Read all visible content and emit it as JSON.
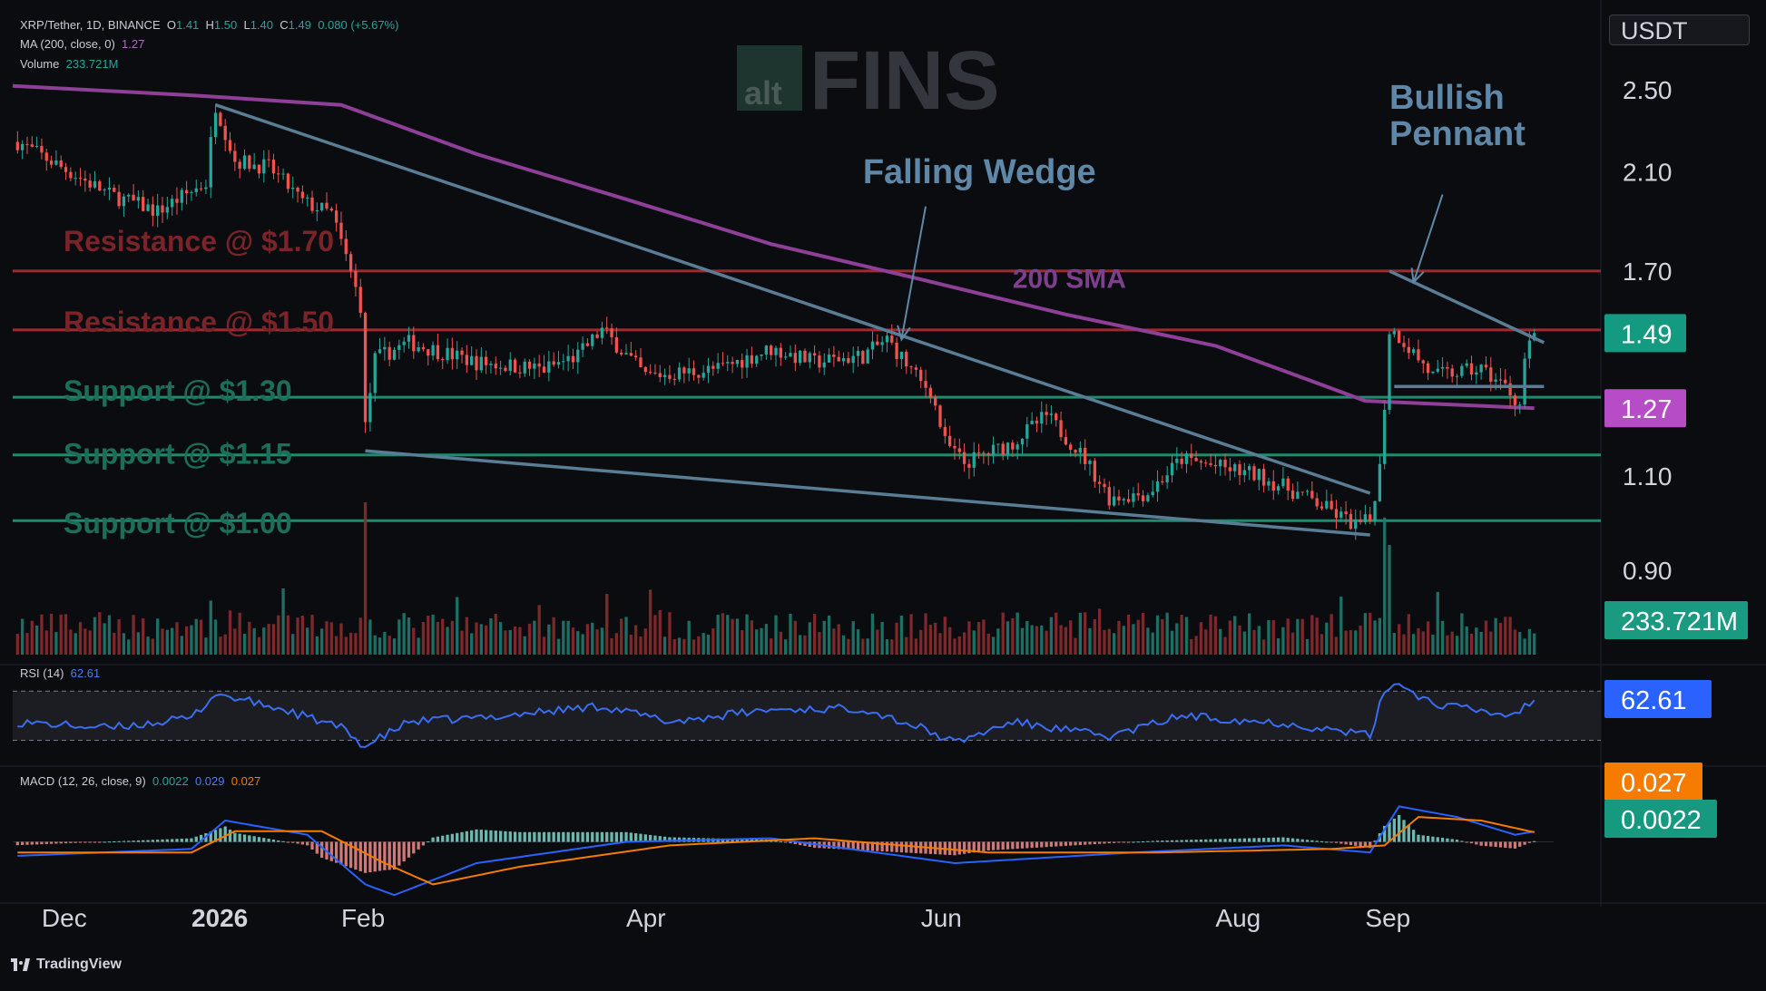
{
  "header": {
    "symbol": "XRP/Tether, 1D, BINANCE",
    "ohlc": [
      {
        "label": "O",
        "value": "1.41"
      },
      {
        "label": "H",
        "value": "1.50"
      },
      {
        "label": "L",
        "value": "1.40"
      },
      {
        "label": "C",
        "value": "1.49"
      }
    ],
    "change": "0.080 (+5.67%)",
    "ma_label": "MA (200, close, 0)",
    "ma_value": "1.27",
    "volume_label": "Volume",
    "volume_value": "233.721M",
    "rsi_label": "RSI (14)",
    "rsi_value": "62.61",
    "macd_label": "MACD (12, 26, close, 9)",
    "macd_values": [
      "0.0022",
      "0.029",
      "0.027"
    ]
  },
  "watermark": {
    "small": "alt",
    "big": "FINS"
  },
  "currency_unit": "USDT",
  "branding": "TradingView",
  "colors": {
    "up": "#26a69a",
    "down": "#ef5350",
    "resistance": "#9e2b30",
    "support": "#1f8a6e",
    "sma": "#8e3f98",
    "trendline": "#5a7d96",
    "rsi": "#3a6df0",
    "macd_signal": "#f57c00",
    "macd_line": "#2962ff",
    "label_text": "#5f88a8"
  },
  "chart_data": {
    "type": "candlestick",
    "interval": "1D",
    "y_scale": "log",
    "ylim": [
      0.8,
      2.8
    ],
    "x_range": [
      "2025-11-25",
      "2026-10-10"
    ],
    "y_ticks": [
      "2.50",
      "2.10",
      "1.70",
      "1.10",
      "0.90"
    ],
    "x_ticks": [
      {
        "date": "2025-12-01",
        "label": "Dec",
        "bold": false
      },
      {
        "date": "2026-01-01",
        "label": "2026",
        "bold": true
      },
      {
        "date": "2026-02-01",
        "label": "Feb",
        "bold": false
      },
      {
        "date": "2026-04-01",
        "label": "Apr",
        "bold": false
      },
      {
        "date": "2026-06-01",
        "label": "Jun",
        "bold": false
      },
      {
        "date": "2026-08-01",
        "label": "Aug",
        "bold": false
      },
      {
        "date": "2026-09-01",
        "label": "Sep",
        "bold": false
      }
    ],
    "price_path": [
      [
        "2025-11-25",
        2.25
      ],
      [
        "2025-12-05",
        2.12
      ],
      [
        "2025-12-15",
        2.0
      ],
      [
        "2025-12-25",
        1.93
      ],
      [
        "2026-01-04",
        2.05
      ],
      [
        "2026-01-06",
        2.42
      ],
      [
        "2026-01-10",
        2.15
      ],
      [
        "2026-01-17",
        2.12
      ],
      [
        "2026-01-24",
        1.97
      ],
      [
        "2026-01-30",
        1.92
      ],
      [
        "2026-02-02",
        1.75
      ],
      [
        "2026-02-05",
        1.58
      ],
      [
        "2026-02-06",
        1.22
      ],
      [
        "2026-02-08",
        1.41
      ],
      [
        "2026-02-15",
        1.46
      ],
      [
        "2026-03-01",
        1.4
      ],
      [
        "2026-03-15",
        1.38
      ],
      [
        "2026-03-22",
        1.42
      ],
      [
        "2026-03-27",
        1.5
      ],
      [
        "2026-04-05",
        1.36
      ],
      [
        "2026-04-20",
        1.38
      ],
      [
        "2026-05-01",
        1.44
      ],
      [
        "2026-05-10",
        1.4
      ],
      [
        "2026-05-20",
        1.42
      ],
      [
        "2026-05-25",
        1.47
      ],
      [
        "2026-06-01",
        1.34
      ],
      [
        "2026-06-03",
        1.32
      ],
      [
        "2026-06-06",
        1.18
      ],
      [
        "2026-06-10",
        1.13
      ],
      [
        "2026-06-20",
        1.18
      ],
      [
        "2026-06-27",
        1.25
      ],
      [
        "2026-07-05",
        1.14
      ],
      [
        "2026-07-10",
        1.05
      ],
      [
        "2026-07-18",
        1.06
      ],
      [
        "2026-07-25",
        1.14
      ],
      [
        "2026-08-10",
        1.1
      ],
      [
        "2026-08-20",
        1.05
      ],
      [
        "2026-08-30",
        0.99
      ],
      [
        "2026-09-02",
        1.0
      ],
      [
        "2026-09-04",
        1.12
      ],
      [
        "2026-09-05",
        1.28
      ],
      [
        "2026-09-06",
        1.5
      ],
      [
        "2026-09-08",
        1.48
      ],
      [
        "2026-09-15",
        1.36
      ],
      [
        "2026-09-25",
        1.38
      ],
      [
        "2026-09-30",
        1.33
      ],
      [
        "2026-10-03",
        1.28
      ],
      [
        "2026-10-04",
        1.41
      ],
      [
        "2026-10-06",
        1.49
      ]
    ],
    "sma200_path": [
      [
        "2025-11-25",
        2.52
      ],
      [
        "2026-01-01",
        2.47
      ],
      [
        "2026-02-01",
        2.42
      ],
      [
        "2026-03-01",
        2.18
      ],
      [
        "2026-04-01",
        1.98
      ],
      [
        "2026-05-01",
        1.8
      ],
      [
        "2026-06-01",
        1.67
      ],
      [
        "2026-07-01",
        1.55
      ],
      [
        "2026-08-01",
        1.45
      ],
      [
        "2026-08-20",
        1.35
      ],
      [
        "2026-09-01",
        1.29
      ],
      [
        "2026-10-06",
        1.27
      ]
    ],
    "horizontal_levels": [
      {
        "price": 1.7,
        "kind": "resistance",
        "label": "Resistance @ $1.70"
      },
      {
        "price": 1.5,
        "kind": "resistance",
        "label": "Resistance @ $1.50"
      },
      {
        "price": 1.3,
        "kind": "support",
        "label": "Support @ $1.30"
      },
      {
        "price": 1.15,
        "kind": "support",
        "label": "Support @ $1.15"
      },
      {
        "price": 1.0,
        "kind": "support",
        "label": "Support @ $1.00"
      }
    ],
    "trendlines": [
      {
        "name": "wedge-upper",
        "from": [
          "2026-01-06",
          2.42
        ],
        "to": [
          "2026-09-02",
          1.06
        ]
      },
      {
        "name": "wedge-lower",
        "from": [
          "2026-02-06",
          1.16
        ],
        "to": [
          "2026-09-02",
          0.97
        ]
      },
      {
        "name": "pennant-upper",
        "from": [
          "2026-09-06",
          1.7
        ],
        "to": [
          "2026-10-08",
          1.46
        ]
      },
      {
        "name": "pennant-lower",
        "from": [
          "2026-09-07",
          1.33
        ],
        "to": [
          "2026-10-08",
          1.33
        ]
      }
    ],
    "annotations": [
      {
        "text": "Falling Wedge",
        "lines": [
          "Falling Wedge"
        ],
        "at": [
          "2026-05-20",
          2.05
        ],
        "arrow_from": [
          "2026-06-02",
          1.95
        ],
        "arrow_to": [
          "2026-05-28",
          1.47
        ]
      },
      {
        "text": "Bullish Pennant",
        "lines": [
          "Bullish",
          "Pennant"
        ],
        "at": [
          "2026-09-06",
          2.4
        ],
        "arrow_from": [
          "2026-09-17",
          2.0
        ],
        "arrow_to": [
          "2026-09-11",
          1.66
        ]
      },
      {
        "text": "200 SMA",
        "lines": [
          "200 SMA"
        ],
        "at": [
          "2026-06-20",
          1.64
        ],
        "arrow_from": null,
        "arrow_to": null
      }
    ],
    "last_price": {
      "value": "1.49",
      "price": 1.49
    },
    "sma_value": {
      "value": "1.27",
      "price": 1.27
    },
    "volume": {
      "last": "233.721M",
      "spikes": [
        [
          "2026-02-06",
          1.0
        ],
        [
          "2026-09-05",
          0.9
        ],
        [
          "2026-09-06",
          0.72
        ]
      ]
    },
    "rsi": {
      "last": "62.61",
      "levels": [
        70,
        30
      ],
      "path": [
        [
          "2025-11-25",
          45
        ],
        [
          "2025-12-15",
          40
        ],
        [
          "2026-01-01",
          48
        ],
        [
          "2026-01-06",
          68
        ],
        [
          "2026-01-20",
          55
        ],
        [
          "2026-02-01",
          40
        ],
        [
          "2026-02-06",
          25
        ],
        [
          "2026-02-15",
          45
        ],
        [
          "2026-03-01",
          48
        ],
        [
          "2026-03-27",
          58
        ],
        [
          "2026-04-10",
          45
        ],
        [
          "2026-05-01",
          55
        ],
        [
          "2026-05-20",
          56
        ],
        [
          "2026-06-01",
          40
        ],
        [
          "2026-06-08",
          28
        ],
        [
          "2026-06-20",
          45
        ],
        [
          "2026-07-10",
          33
        ],
        [
          "2026-07-25",
          50
        ],
        [
          "2026-08-15",
          44
        ],
        [
          "2026-09-02",
          34
        ],
        [
          "2026-09-05",
          70
        ],
        [
          "2026-09-07",
          78
        ],
        [
          "2026-09-15",
          60
        ],
        [
          "2026-10-01",
          50
        ],
        [
          "2026-10-06",
          62.61
        ]
      ]
    },
    "macd": {
      "macd_last": "0.029",
      "signal_last": "0.027",
      "hist_last": "0.0022",
      "macd_path": [
        [
          "2025-11-25",
          -0.04
        ],
        [
          "2026-01-01",
          -0.02
        ],
        [
          "2026-01-08",
          0.06
        ],
        [
          "2026-01-25",
          0.02
        ],
        [
          "2026-02-06",
          -0.12
        ],
        [
          "2026-02-12",
          -0.15
        ],
        [
          "2026-03-01",
          -0.06
        ],
        [
          "2026-04-01",
          0.0
        ],
        [
          "2026-05-01",
          0.01
        ],
        [
          "2026-06-08",
          -0.06
        ],
        [
          "2026-07-15",
          -0.03
        ],
        [
          "2026-08-15",
          -0.01
        ],
        [
          "2026-09-02",
          -0.03
        ],
        [
          "2026-09-08",
          0.1
        ],
        [
          "2026-09-20",
          0.07
        ],
        [
          "2026-10-02",
          0.02
        ],
        [
          "2026-10-06",
          0.029
        ]
      ],
      "signal_path": [
        [
          "2025-11-25",
          -0.03
        ],
        [
          "2026-01-01",
          -0.03
        ],
        [
          "2026-01-10",
          0.03
        ],
        [
          "2026-01-28",
          0.03
        ],
        [
          "2026-02-10",
          -0.06
        ],
        [
          "2026-02-20",
          -0.12
        ],
        [
          "2026-03-10",
          -0.07
        ],
        [
          "2026-04-10",
          -0.01
        ],
        [
          "2026-05-10",
          0.01
        ],
        [
          "2026-06-15",
          -0.03
        ],
        [
          "2026-07-20",
          -0.03
        ],
        [
          "2026-08-25",
          -0.02
        ],
        [
          "2026-09-05",
          -0.01
        ],
        [
          "2026-09-12",
          0.07
        ],
        [
          "2026-09-25",
          0.06
        ],
        [
          "2026-10-06",
          0.027
        ]
      ]
    }
  }
}
